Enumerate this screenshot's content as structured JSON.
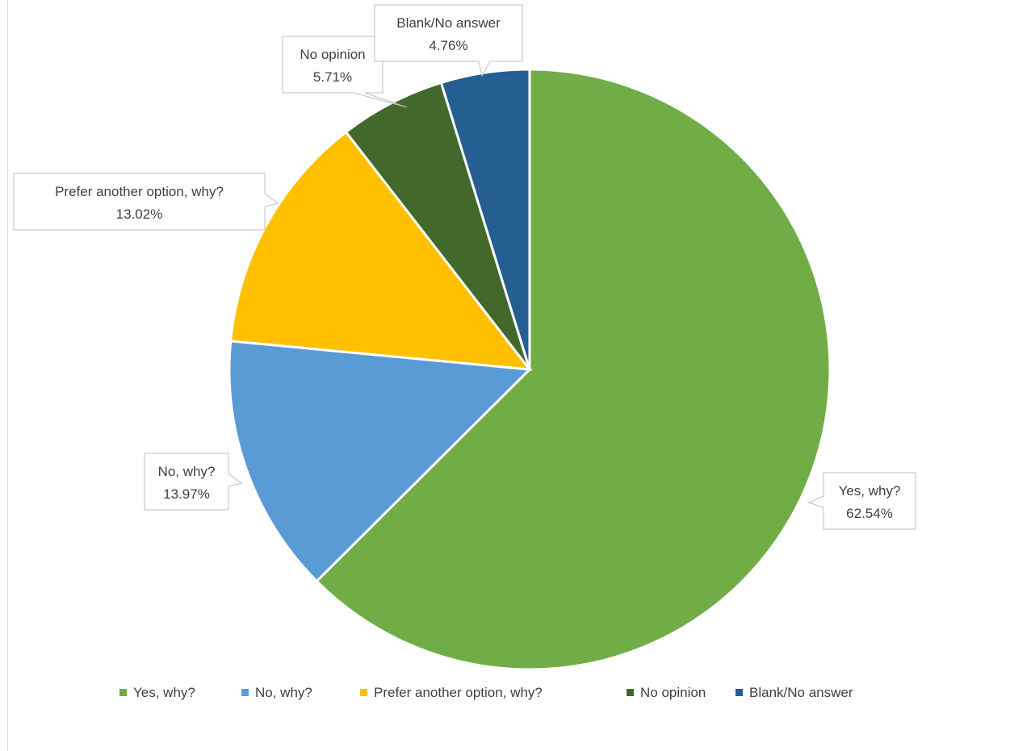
{
  "chart_data": {
    "type": "pie",
    "categories": [
      "Yes, why?",
      "No, why?",
      "Prefer another option, why?",
      "No opinion",
      "Blank/No answer"
    ],
    "values": [
      62.54,
      13.97,
      13.02,
      5.71,
      4.76
    ],
    "value_labels": [
      "62.54%",
      "13.97%",
      "13.02%",
      "5.71%",
      "4.76%"
    ],
    "colors": [
      "#70AD47",
      "#5B9BD5",
      "#FFC000",
      "#43682B",
      "#255E91"
    ],
    "start_angle_deg": 0,
    "direction": "clockwise",
    "legend_position": "bottom",
    "title": ""
  }
}
